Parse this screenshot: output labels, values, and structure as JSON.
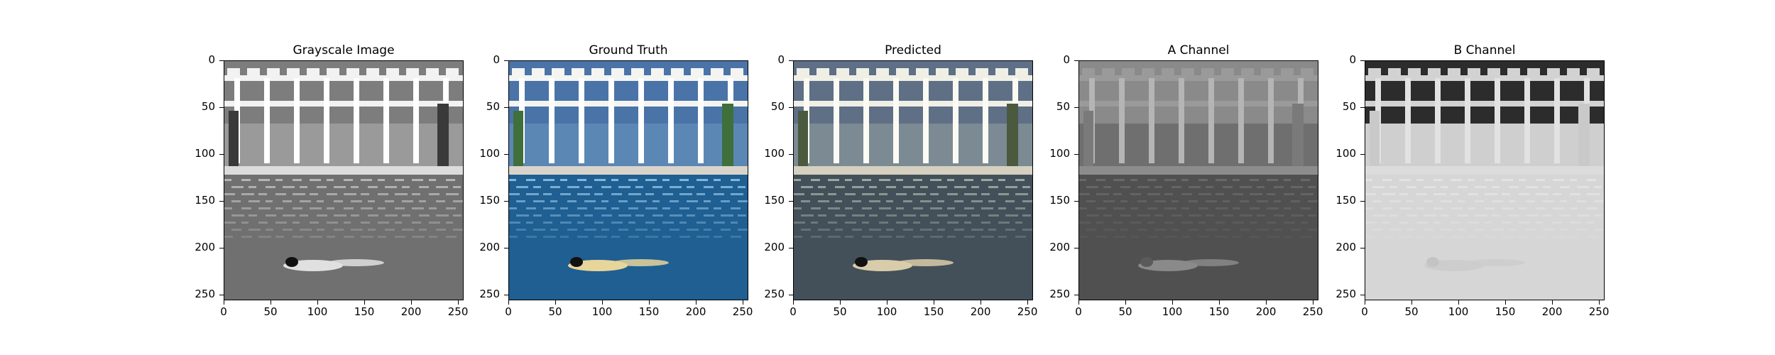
{
  "figure": {
    "panels": [
      {
        "title": "Grayscale Image",
        "variant": "gray"
      },
      {
        "title": "Ground Truth",
        "variant": "color"
      },
      {
        "title": "Predicted",
        "variant": "predicted"
      },
      {
        "title": "A Channel",
        "variant": "achannel"
      },
      {
        "title": "B Channel",
        "variant": "bchannel"
      }
    ],
    "x_ticks": [
      "0",
      "50",
      "100",
      "150",
      "200",
      "250"
    ],
    "y_ticks": [
      "0",
      "50",
      "100",
      "150",
      "200",
      "250"
    ],
    "axis_range": [
      0,
      256
    ]
  }
}
